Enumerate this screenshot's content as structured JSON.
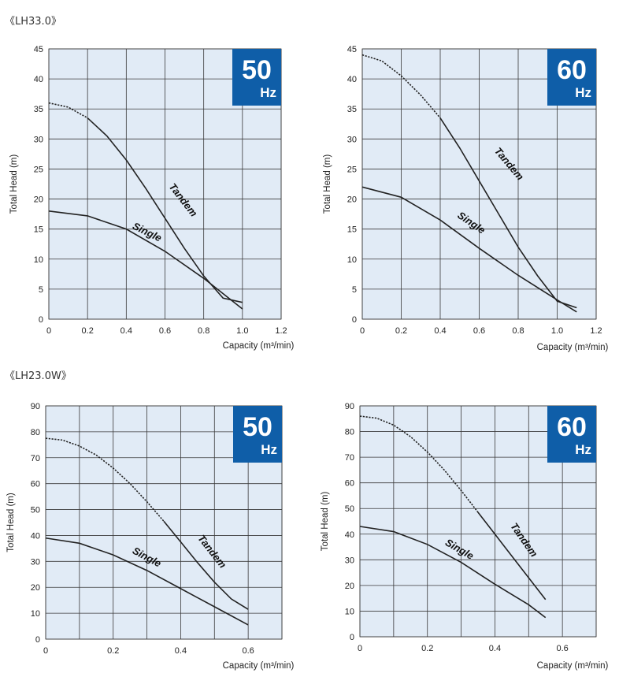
{
  "sections": [
    {
      "title": "《LH33.0》"
    },
    {
      "title": "《LH23.0W》"
    }
  ],
  "colors": {
    "plot_bg": "#e1ebf6",
    "grid": "#3a3a3a",
    "curve": "#222222",
    "badge": "#0f5ea8"
  },
  "chart_data": [
    {
      "type": "line",
      "model": "LH33.0",
      "freq_value": "50",
      "freq_unit": "Hz",
      "xlabel": "Capacity (m³/min)",
      "ylabel": "Total Head (m)",
      "xlim": [
        0,
        1.2
      ],
      "ylim": [
        0,
        45
      ],
      "xticks": [
        0,
        0.2,
        0.4,
        0.6,
        0.8,
        1.0,
        1.2
      ],
      "xtick_labels": [
        "0",
        "0.2",
        "0.4",
        "0.6",
        "0.8",
        "1.0",
        "1.2"
      ],
      "yticks": [
        0,
        5,
        10,
        15,
        20,
        25,
        30,
        35,
        40,
        45
      ],
      "ytick_labels": [
        "0",
        "5",
        "10",
        "15",
        "20",
        "25",
        "30",
        "35",
        "40",
        "45"
      ],
      "grid": true,
      "series": [
        {
          "name": "Tandem",
          "dashed_until_x": 0.2,
          "label_at": [
            0.68,
            19.5
          ],
          "label_angle": 52,
          "points": [
            [
              0,
              36
            ],
            [
              0.1,
              35.3
            ],
            [
              0.2,
              33.5
            ],
            [
              0.3,
              30.5
            ],
            [
              0.4,
              26.5
            ],
            [
              0.5,
              21.8
            ],
            [
              0.6,
              16.8
            ],
            [
              0.7,
              11.8
            ],
            [
              0.8,
              7.2
            ],
            [
              0.9,
              3.5
            ],
            [
              1.0,
              2.8
            ]
          ]
        },
        {
          "name": "Single",
          "label_at": [
            0.5,
            14
          ],
          "label_angle": 26,
          "points": [
            [
              0,
              18
            ],
            [
              0.2,
              17.2
            ],
            [
              0.4,
              15
            ],
            [
              0.6,
              11.3
            ],
            [
              0.8,
              6.8
            ],
            [
              1.0,
              1.7
            ]
          ]
        }
      ]
    },
    {
      "type": "line",
      "model": "LH33.0",
      "freq_value": "60",
      "freq_unit": "Hz",
      "xlabel": "Capacity (m³/min)",
      "ylabel": "Total Head (m)",
      "xlim": [
        0,
        1.2
      ],
      "ylim": [
        0,
        45
      ],
      "xticks": [
        0,
        0.2,
        0.4,
        0.6,
        0.8,
        1.0,
        1.2
      ],
      "xtick_labels": [
        "0",
        "0.2",
        "0.4",
        "0.6",
        "0.8",
        "1.0",
        "1.2"
      ],
      "yticks": [
        0,
        5,
        10,
        15,
        20,
        25,
        30,
        35,
        40,
        45
      ],
      "ytick_labels": [
        "0",
        "5",
        "10",
        "15",
        "20",
        "25",
        "30",
        "35",
        "40",
        "45"
      ],
      "grid": true,
      "series": [
        {
          "name": "Tandem",
          "dashed_until_x": 0.4,
          "label_at": [
            0.74,
            25.5
          ],
          "label_angle": 50,
          "points": [
            [
              0,
              44
            ],
            [
              0.1,
              43
            ],
            [
              0.2,
              40.5
            ],
            [
              0.3,
              37.3
            ],
            [
              0.4,
              33.5
            ],
            [
              0.5,
              28.5
            ],
            [
              0.6,
              23
            ],
            [
              0.7,
              17.5
            ],
            [
              0.8,
              12
            ],
            [
              0.9,
              7.2
            ],
            [
              1.0,
              3
            ],
            [
              1.1,
              1.9
            ]
          ]
        },
        {
          "name": "Single",
          "label_at": [
            0.55,
            15.6
          ],
          "label_angle": 34,
          "points": [
            [
              0,
              22
            ],
            [
              0.2,
              20.3
            ],
            [
              0.4,
              16.5
            ],
            [
              0.6,
              11.8
            ],
            [
              0.8,
              7.3
            ],
            [
              1.0,
              3.2
            ],
            [
              1.1,
              1.2
            ]
          ]
        }
      ]
    },
    {
      "type": "line",
      "model": "LH23.0W",
      "freq_value": "50",
      "freq_unit": "Hz",
      "xlabel": "Capacity (m³/min)",
      "ylabel": "Total Head (m)",
      "xlim": [
        0,
        0.7
      ],
      "ylim": [
        0,
        90
      ],
      "xticks": [
        0,
        0.2,
        0.4,
        0.6
      ],
      "xtick_labels": [
        "0",
        "0.2",
        "0.4",
        "0.6"
      ],
      "yticks": [
        0,
        10,
        20,
        30,
        40,
        50,
        60,
        70,
        80,
        90
      ],
      "ytick_labels": [
        "0",
        "10",
        "20",
        "30",
        "40",
        "50",
        "60",
        "70",
        "80",
        "90"
      ],
      "grid_x_step": 0.1,
      "grid": true,
      "series": [
        {
          "name": "Tandem",
          "dashed_until_x": 0.35,
          "label_at": [
            0.485,
            33
          ],
          "label_angle": 52,
          "points": [
            [
              0,
              77.5
            ],
            [
              0.05,
              76.8
            ],
            [
              0.1,
              74.5
            ],
            [
              0.15,
              71
            ],
            [
              0.2,
              66
            ],
            [
              0.25,
              60
            ],
            [
              0.3,
              53
            ],
            [
              0.35,
              45.5
            ],
            [
              0.4,
              37.5
            ],
            [
              0.45,
              29.5
            ],
            [
              0.5,
              22
            ],
            [
              0.55,
              15.5
            ],
            [
              0.6,
              11.5
            ]
          ]
        },
        {
          "name": "Single",
          "label_at": [
            0.295,
            30.5
          ],
          "label_angle": 28,
          "points": [
            [
              0,
              39
            ],
            [
              0.1,
              37
            ],
            [
              0.2,
              32.5
            ],
            [
              0.3,
              26.5
            ],
            [
              0.4,
              19.5
            ],
            [
              0.5,
              12.5
            ],
            [
              0.6,
              5.5
            ]
          ]
        }
      ]
    },
    {
      "type": "line",
      "model": "LH23.0W",
      "freq_value": "60",
      "freq_unit": "Hz",
      "xlabel": "Capacity (m³/min)",
      "ylabel": "Total Head (m)",
      "xlim": [
        0,
        0.7
      ],
      "ylim": [
        0,
        90
      ],
      "xticks": [
        0,
        0.2,
        0.4,
        0.6
      ],
      "xtick_labels": [
        "0",
        "0.2",
        "0.4",
        "0.6"
      ],
      "yticks": [
        0,
        10,
        20,
        30,
        40,
        50,
        60,
        70,
        80,
        90
      ],
      "ytick_labels": [
        "0",
        "10",
        "20",
        "30",
        "40",
        "50",
        "60",
        "70",
        "80",
        "90"
      ],
      "grid_x_step": 0.1,
      "grid": true,
      "series": [
        {
          "name": "Tandem",
          "dashed_until_x": 0.35,
          "label_at": [
            0.478,
            37
          ],
          "label_angle": 55,
          "points": [
            [
              0,
              86
            ],
            [
              0.05,
              85.2
            ],
            [
              0.1,
              82.5
            ],
            [
              0.15,
              78
            ],
            [
              0.2,
              72
            ],
            [
              0.25,
              65
            ],
            [
              0.3,
              57
            ],
            [
              0.35,
              48.5
            ],
            [
              0.4,
              40
            ],
            [
              0.45,
              31.5
            ],
            [
              0.5,
              23
            ],
            [
              0.55,
              14.5
            ]
          ]
        },
        {
          "name": "Single",
          "label_at": [
            0.29,
            33
          ],
          "label_angle": 30,
          "points": [
            [
              0,
              43
            ],
            [
              0.1,
              41
            ],
            [
              0.2,
              36
            ],
            [
              0.3,
              29
            ],
            [
              0.4,
              20.5
            ],
            [
              0.5,
              12.5
            ],
            [
              0.55,
              7.5
            ]
          ]
        }
      ]
    }
  ]
}
